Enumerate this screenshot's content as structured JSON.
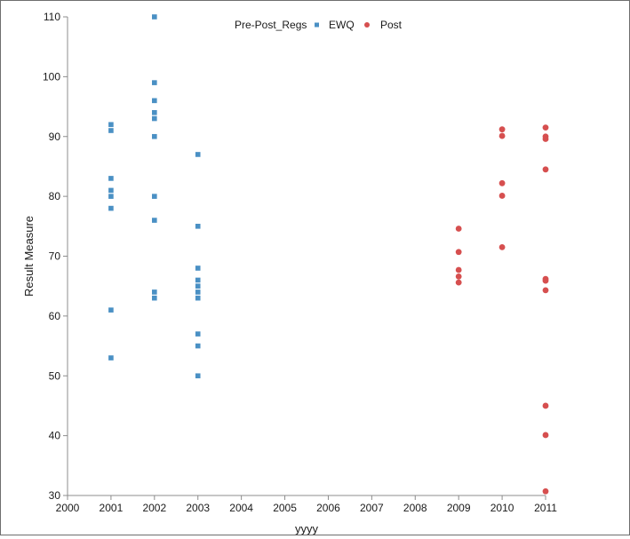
{
  "chart_data": {
    "type": "scatter",
    "title": "",
    "xlabel": "yyyy",
    "ylabel": "Result Measure",
    "xlim": [
      2000,
      2011
    ],
    "ylim": [
      30,
      110
    ],
    "x_ticks": [
      2000,
      2001,
      2002,
      2003,
      2004,
      2005,
      2006,
      2007,
      2008,
      2009,
      2010,
      2011
    ],
    "y_ticks": [
      30,
      40,
      50,
      60,
      70,
      80,
      90,
      100,
      110
    ],
    "grid": false,
    "legend": {
      "title": "Pre-Post_Regs",
      "placement": "top-center",
      "entries": [
        "EWQ",
        "Post"
      ]
    },
    "series": [
      {
        "name": "EWQ",
        "marker": "square",
        "color": "#4a90c4",
        "points": [
          [
            2001,
            92
          ],
          [
            2001,
            91
          ],
          [
            2001,
            83
          ],
          [
            2001,
            81
          ],
          [
            2001,
            80
          ],
          [
            2001,
            78
          ],
          [
            2001,
            61
          ],
          [
            2001,
            53
          ],
          [
            2002,
            110
          ],
          [
            2002,
            99
          ],
          [
            2002,
            96
          ],
          [
            2002,
            94
          ],
          [
            2002,
            93
          ],
          [
            2002,
            90
          ],
          [
            2002,
            80
          ],
          [
            2002,
            76
          ],
          [
            2002,
            64
          ],
          [
            2002,
            63
          ],
          [
            2003,
            87
          ],
          [
            2003,
            75
          ],
          [
            2003,
            68
          ],
          [
            2003,
            66
          ],
          [
            2003,
            65
          ],
          [
            2003,
            64
          ],
          [
            2003,
            63
          ],
          [
            2003,
            57
          ],
          [
            2003,
            55
          ],
          [
            2003,
            50
          ]
        ]
      },
      {
        "name": "Post",
        "marker": "circle",
        "color": "#d64f4f",
        "points": [
          [
            2009,
            74.6
          ],
          [
            2009,
            70.7
          ],
          [
            2009,
            67.7
          ],
          [
            2009,
            66.6
          ],
          [
            2009,
            65.6
          ],
          [
            2010,
            91.2
          ],
          [
            2010,
            90.1
          ],
          [
            2010,
            82.2
          ],
          [
            2010,
            80.1
          ],
          [
            2010,
            71.5
          ],
          [
            2011,
            91.5
          ],
          [
            2011,
            90.0
          ],
          [
            2011,
            89.6
          ],
          [
            2011,
            84.5
          ],
          [
            2011,
            66.2
          ],
          [
            2011,
            65.9
          ],
          [
            2011,
            64.3
          ],
          [
            2011,
            45.0
          ],
          [
            2011,
            40.1
          ],
          [
            2011,
            30.7
          ]
        ]
      }
    ]
  }
}
